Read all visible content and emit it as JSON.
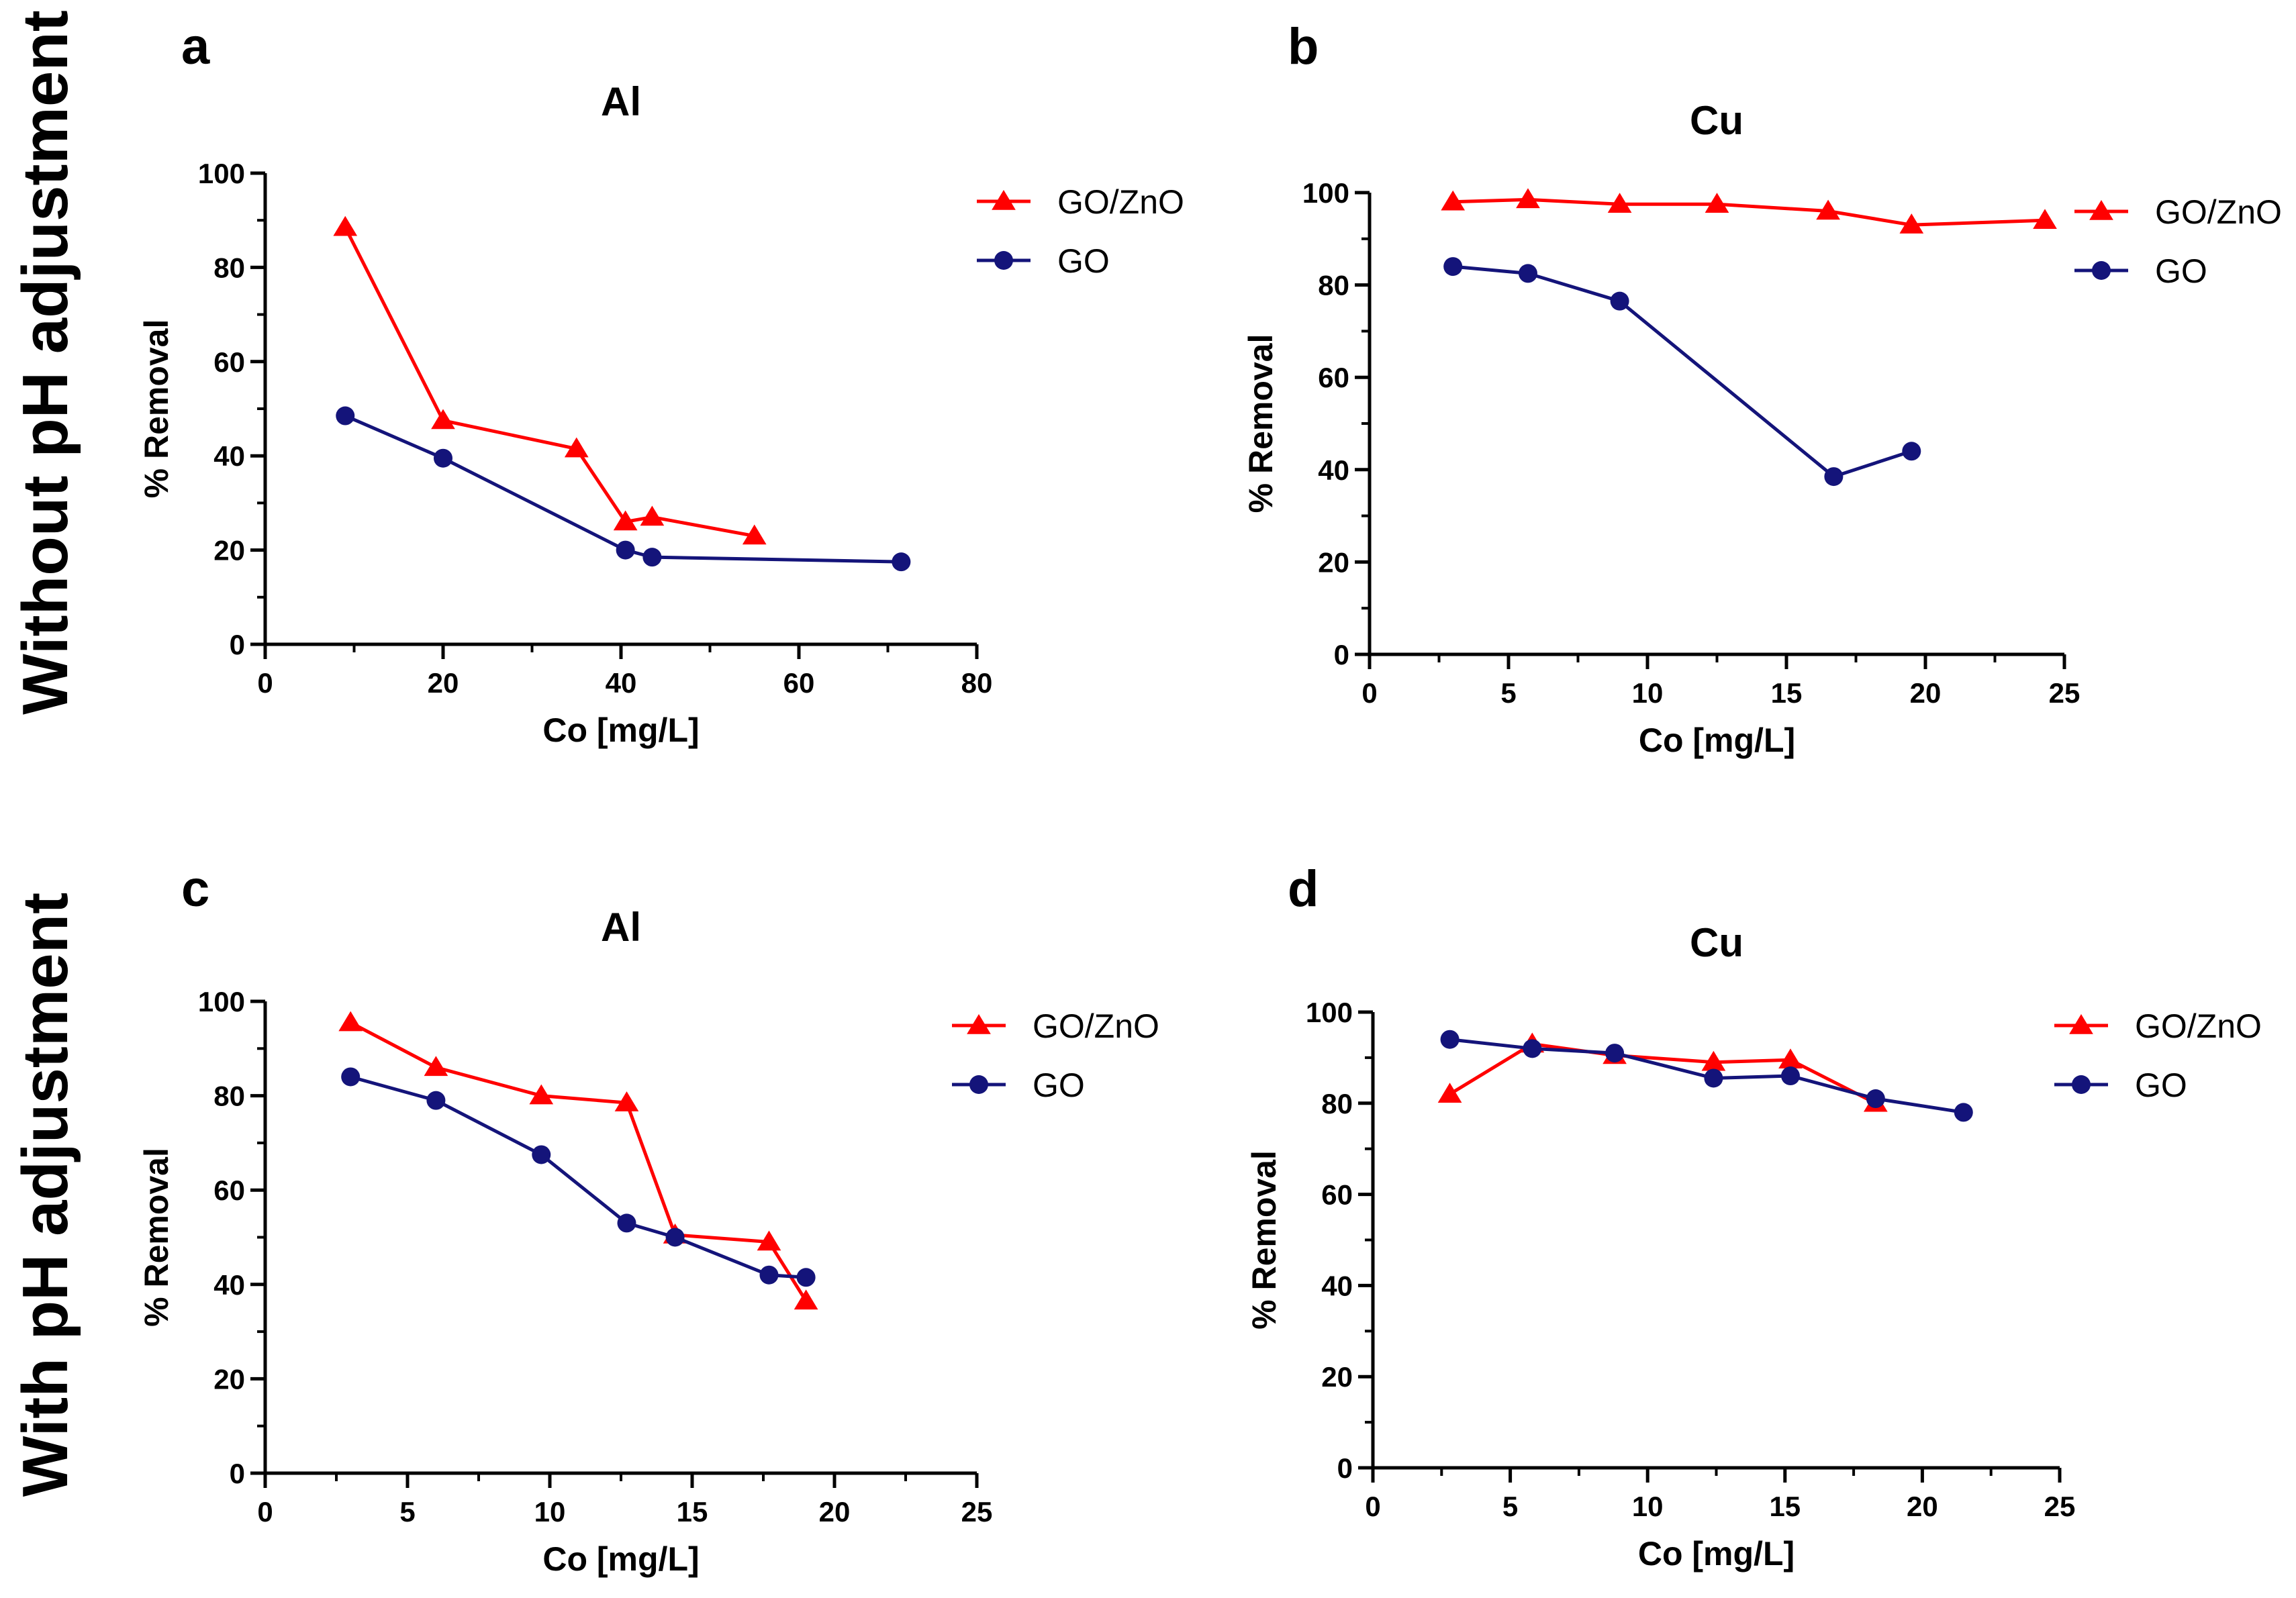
{
  "figure": {
    "row_labels": [
      "Without pH adjustment",
      "With pH adjustment"
    ]
  },
  "colors": {
    "gozno": "#ff0000",
    "go": "#14147a",
    "axis": "#000000"
  },
  "chart_data": [
    {
      "type": "line",
      "panel": "a",
      "title": "Al",
      "xlabel": "Co [mg/L]",
      "ylabel": "% Removal",
      "xlim": [
        0,
        80
      ],
      "ylim": [
        0,
        100
      ],
      "xticks": [
        0,
        20,
        40,
        60,
        80
      ],
      "yticks": [
        0,
        20,
        40,
        60,
        80,
        100
      ],
      "legend": "top-right",
      "series": [
        {
          "name": "GO/ZnO",
          "marker": "triangle",
          "color": "#ff0000",
          "x": [
            9,
            20,
            35,
            40.5,
            43.5,
            55
          ],
          "y": [
            88.5,
            47.5,
            41.5,
            26,
            27,
            23
          ]
        },
        {
          "name": "GO",
          "marker": "circle",
          "color": "#14147a",
          "x": [
            9,
            20,
            40.5,
            43.5,
            71.5
          ],
          "y": [
            48.5,
            39.5,
            20,
            18.5,
            17.5
          ]
        }
      ]
    },
    {
      "type": "line",
      "panel": "b",
      "title": "Cu",
      "xlabel": "Co [mg/L]",
      "ylabel": "% Removal",
      "xlim": [
        0,
        25
      ],
      "ylim": [
        0,
        100
      ],
      "xticks": [
        0,
        5,
        10,
        15,
        20,
        25
      ],
      "yticks": [
        0,
        20,
        40,
        60,
        80,
        100
      ],
      "legend": "top-right",
      "series": [
        {
          "name": "GO/ZnO",
          "marker": "triangle",
          "color": "#ff0000",
          "x": [
            3,
            5.7,
            9,
            12.5,
            16.5,
            19.5,
            24.3
          ],
          "y": [
            98,
            98.5,
            97.5,
            97.5,
            96,
            93,
            94
          ]
        },
        {
          "name": "GO",
          "marker": "circle",
          "color": "#14147a",
          "x": [
            3,
            5.7,
            9,
            16.7,
            19.5
          ],
          "y": [
            84,
            82.5,
            76.5,
            38.5,
            44
          ]
        }
      ]
    },
    {
      "type": "line",
      "panel": "c",
      "title": "Al",
      "xlabel": "Co [mg/L]",
      "ylabel": "% Removal",
      "xlim": [
        0,
        25
      ],
      "ylim": [
        0,
        100
      ],
      "xticks": [
        0,
        5,
        10,
        15,
        20,
        25
      ],
      "yticks": [
        0,
        20,
        40,
        60,
        80,
        100
      ],
      "legend": "top-right",
      "series": [
        {
          "name": "GO/ZnO",
          "marker": "triangle",
          "color": "#ff0000",
          "x": [
            3,
            6,
            9.7,
            12.7,
            14.4,
            17.7,
            19
          ],
          "y": [
            95.5,
            86,
            80,
            78.5,
            50.5,
            49,
            36.5
          ]
        },
        {
          "name": "GO",
          "marker": "circle",
          "color": "#14147a",
          "x": [
            3,
            6,
            9.7,
            12.7,
            14.4,
            17.7,
            19
          ],
          "y": [
            84,
            79,
            67.5,
            53,
            50,
            42,
            41.5
          ]
        }
      ]
    },
    {
      "type": "line",
      "panel": "d",
      "title": "Cu",
      "xlabel": "Co [mg/L]",
      "ylabel": "% Removal",
      "xlim": [
        0,
        25
      ],
      "ylim": [
        0,
        100
      ],
      "xticks": [
        0,
        5,
        10,
        15,
        20,
        25
      ],
      "yticks": [
        0,
        20,
        40,
        60,
        80,
        100
      ],
      "legend": "top-right",
      "series": [
        {
          "name": "GO/ZnO",
          "marker": "triangle",
          "color": "#ff0000",
          "x": [
            2.8,
            5.8,
            8.8,
            12.4,
            15.2,
            18.3
          ],
          "y": [
            82,
            93,
            90.5,
            89,
            89.5,
            80
          ]
        },
        {
          "name": "GO",
          "marker": "circle",
          "color": "#14147a",
          "x": [
            2.8,
            5.8,
            8.8,
            12.4,
            15.2,
            18.3,
            21.5
          ],
          "y": [
            94,
            92,
            91,
            85.5,
            86,
            81,
            78
          ]
        }
      ]
    }
  ]
}
